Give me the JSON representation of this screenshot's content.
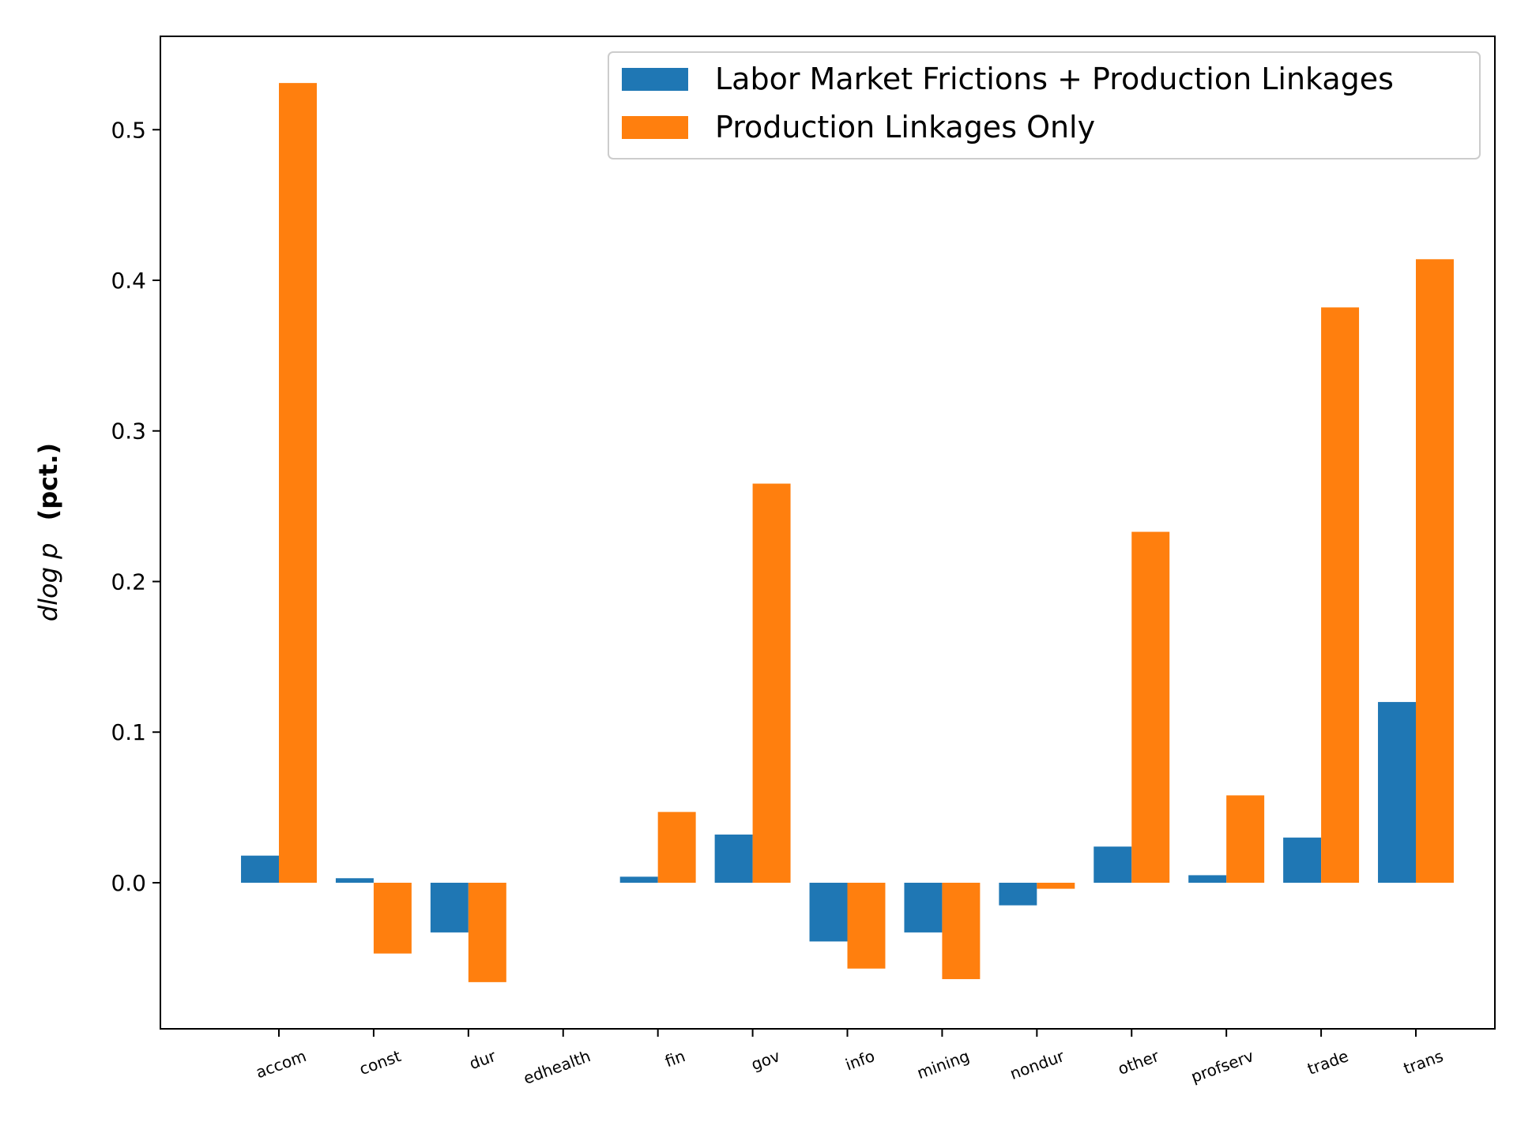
{
  "chart_data": {
    "type": "bar",
    "title": "",
    "xlabel": "",
    "ylabel_math": "dlog p",
    "ylabel_text": "(pct.)",
    "ylim": [
      -0.097,
      0.562
    ],
    "yticks": [
      0.0,
      0.1,
      0.2,
      0.3,
      0.4,
      0.5
    ],
    "ytick_labels": [
      "0.0",
      "0.1",
      "0.2",
      "0.3",
      "0.4",
      "0.5"
    ],
    "categories": [
      "accom",
      "const",
      "dur",
      "edhealth",
      "fin",
      "gov",
      "info",
      "mining",
      "nondur",
      "other",
      "profserv",
      "trade",
      "trans"
    ],
    "series": [
      {
        "name": "Labor Market Frictions + Production Linkages",
        "color": "#1f77b4",
        "values": [
          0.018,
          0.003,
          -0.033,
          0.0,
          0.004,
          0.032,
          -0.039,
          -0.033,
          -0.015,
          0.024,
          0.005,
          0.03,
          0.12
        ]
      },
      {
        "name": "Production Linkages Only",
        "color": "#ff7f0e",
        "values": [
          0.531,
          -0.047,
          -0.066,
          0.0,
          0.047,
          0.265,
          -0.057,
          -0.064,
          -0.004,
          0.233,
          0.058,
          0.382,
          0.414
        ]
      }
    ],
    "legend_position": "top-right",
    "grid": false
  }
}
